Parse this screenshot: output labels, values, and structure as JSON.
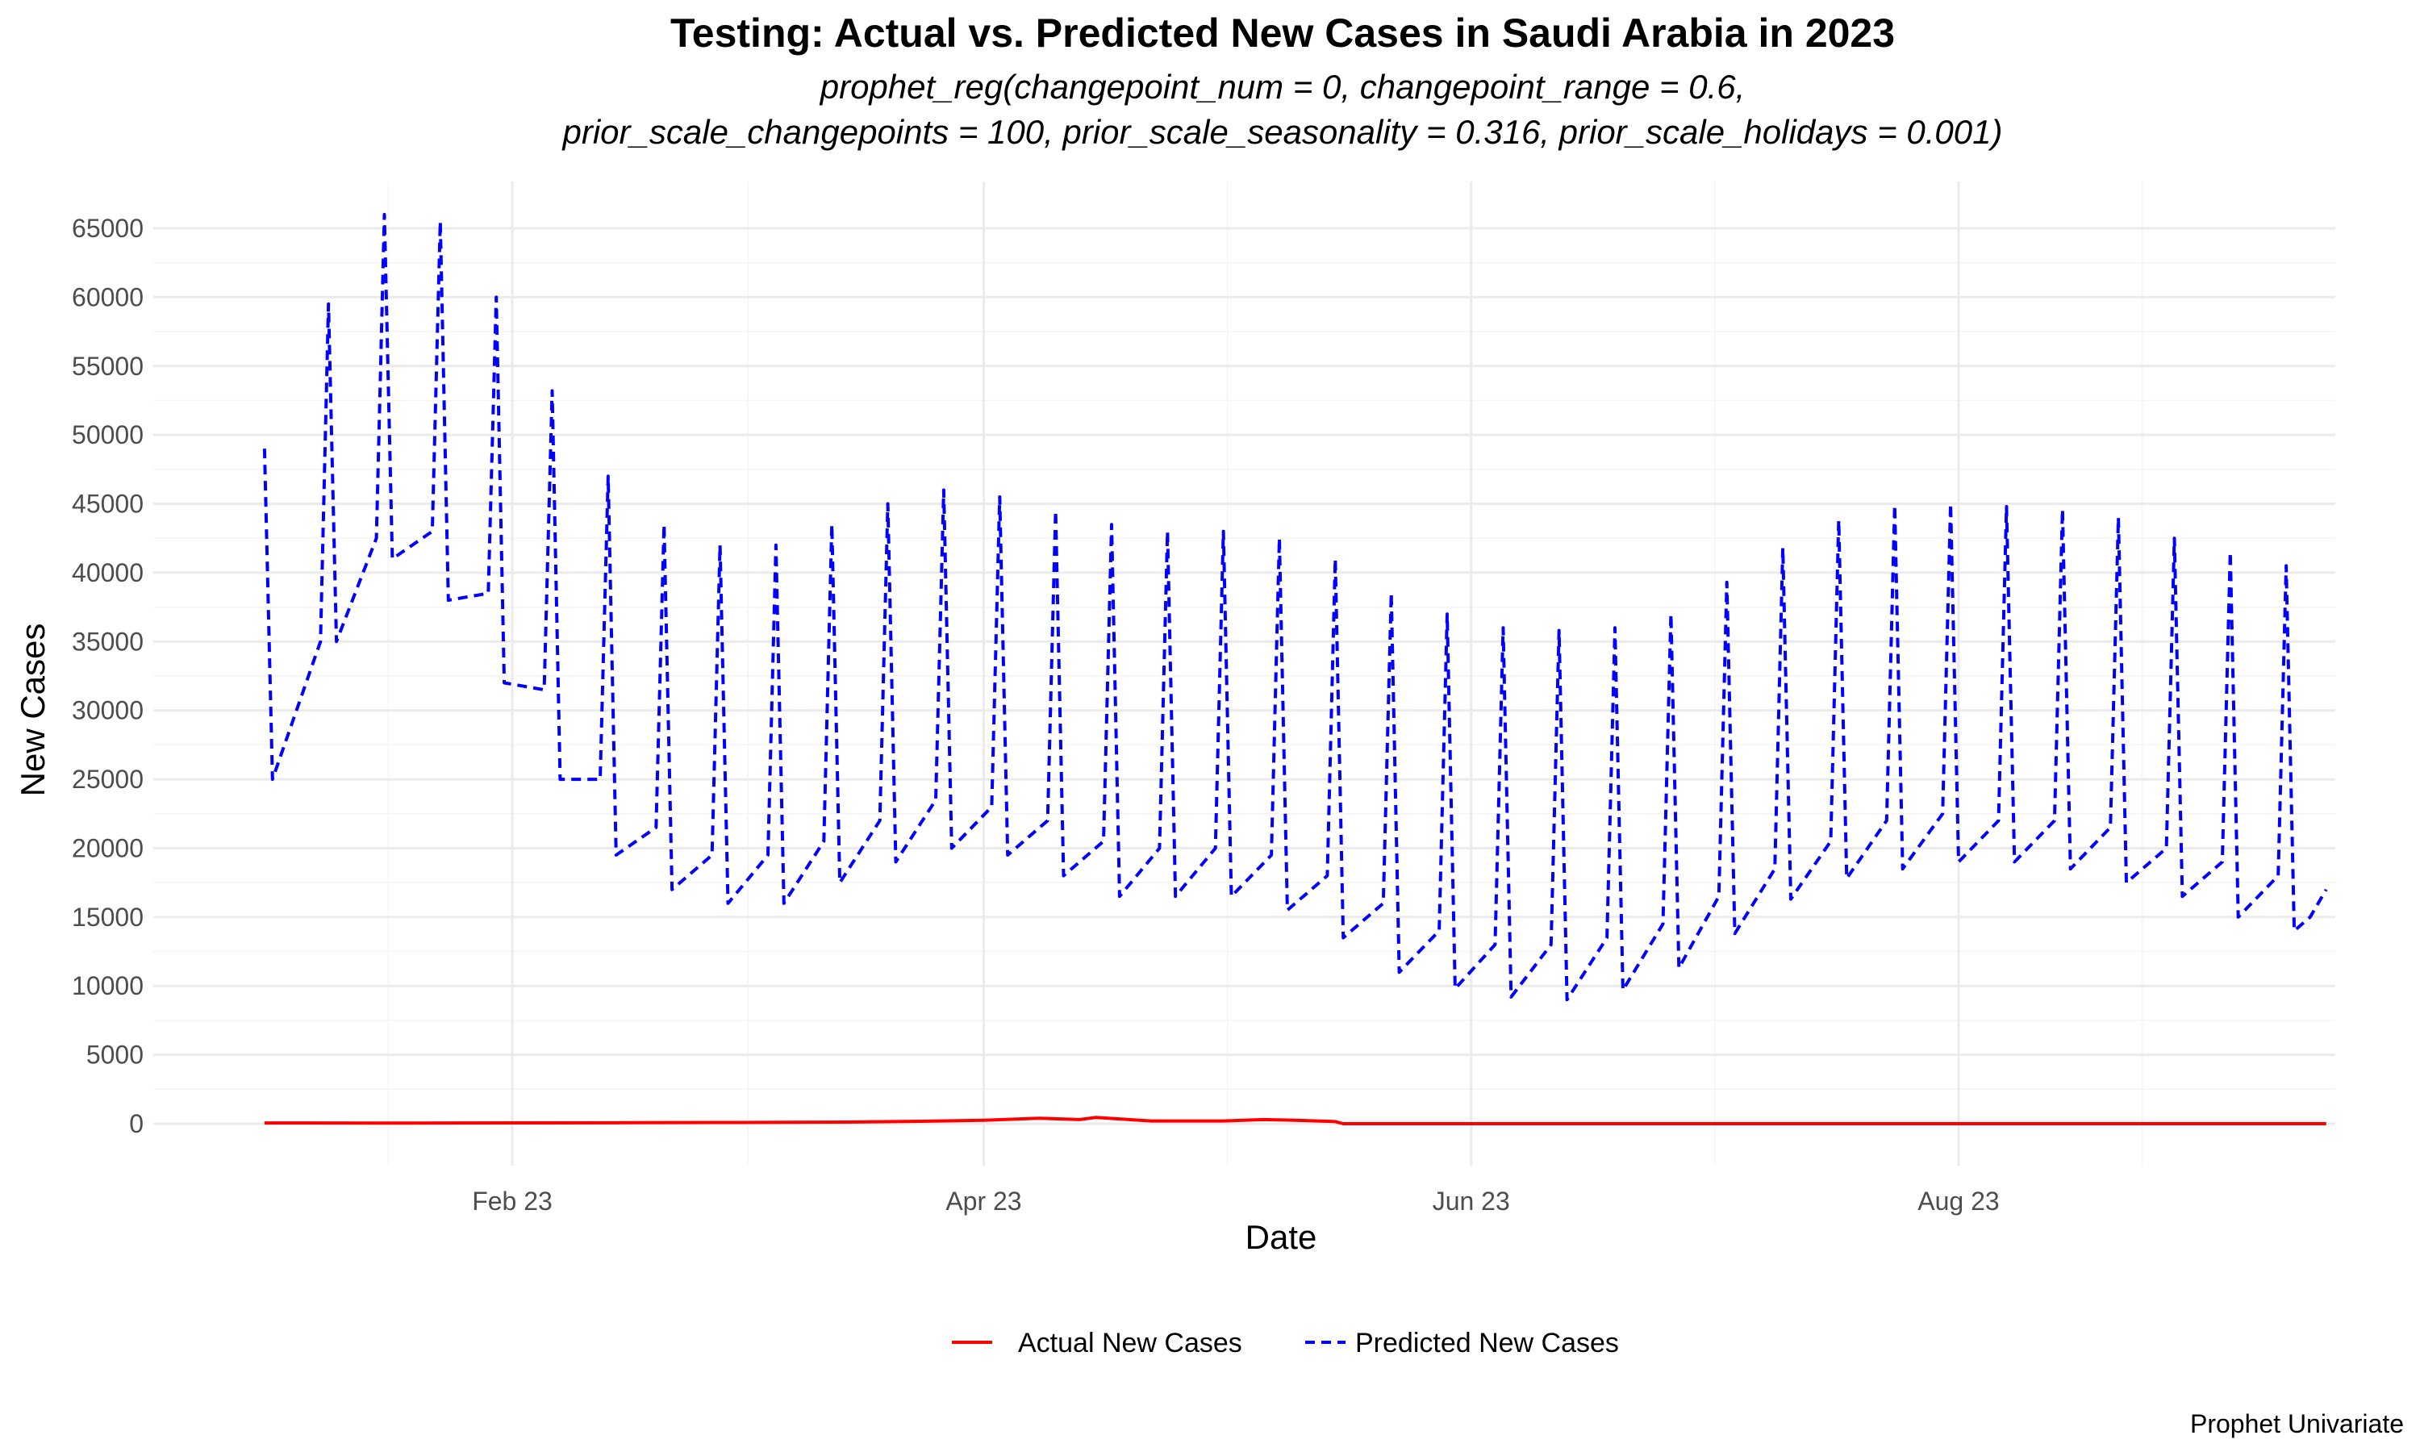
{
  "chart_data": {
    "type": "line",
    "title": "Testing: Actual vs. Predicted New Cases in Saudi Arabia in 2023",
    "subtitle_lines": [
      "prophet_reg(changepoint_num = 0, changepoint_range = 0.6,",
      "prior_scale_changepoints = 100, prior_scale_seasonality = 0.316, prior_scale_holidays = 0.001)"
    ],
    "xlabel": "Date",
    "ylabel": "New Cases",
    "caption": "Prophet Univariate",
    "x_axis_type": "date",
    "x_range": [
      "2023-01-01",
      "2023-09-16"
    ],
    "x_ticks": [
      {
        "date": "2023-02-01",
        "label": "Feb 23"
      },
      {
        "date": "2023-04-01",
        "label": "Apr 23"
      },
      {
        "date": "2023-06-01",
        "label": "Jun 23"
      },
      {
        "date": "2023-08-01",
        "label": "Aug 23"
      }
    ],
    "ylim": [
      -3000,
      66000
    ],
    "y_ticks": [
      0,
      5000,
      10000,
      15000,
      20000,
      25000,
      30000,
      35000,
      40000,
      45000,
      50000,
      55000,
      60000,
      65000
    ],
    "grid": true,
    "legend_position": "bottom",
    "series": [
      {
        "name": "Actual New Cases",
        "color": "#ff0000",
        "line_style": "solid",
        "points": [
          {
            "x": "2023-01-01",
            "y": 50
          },
          {
            "x": "2023-01-15",
            "y": 40
          },
          {
            "x": "2023-02-01",
            "y": 60
          },
          {
            "x": "2023-02-15",
            "y": 70
          },
          {
            "x": "2023-03-01",
            "y": 90
          },
          {
            "x": "2023-03-15",
            "y": 120
          },
          {
            "x": "2023-03-25",
            "y": 180
          },
          {
            "x": "2023-04-01",
            "y": 250
          },
          {
            "x": "2023-04-08",
            "y": 400
          },
          {
            "x": "2023-04-13",
            "y": 300
          },
          {
            "x": "2023-04-15",
            "y": 450
          },
          {
            "x": "2023-04-22",
            "y": 200
          },
          {
            "x": "2023-05-01",
            "y": 200
          },
          {
            "x": "2023-05-06",
            "y": 300
          },
          {
            "x": "2023-05-10",
            "y": 250
          },
          {
            "x": "2023-05-15",
            "y": 150
          },
          {
            "x": "2023-05-16",
            "y": 0
          },
          {
            "x": "2023-09-16",
            "y": 0
          }
        ]
      },
      {
        "name": "Predicted New Cases",
        "color": "#0000ff",
        "line_style": "dashed",
        "weekly_points": [
          {
            "x": "2023-01-01",
            "y": 49000
          },
          {
            "x": "2023-01-02",
            "y": 25000
          },
          {
            "x": "2023-01-08",
            "y": 35000
          },
          {
            "x": "2023-01-09",
            "y": 59500
          },
          {
            "x": "2023-01-10",
            "y": 35000
          },
          {
            "x": "2023-01-15",
            "y": 42500
          },
          {
            "x": "2023-01-16",
            "y": 66000
          },
          {
            "x": "2023-01-17",
            "y": 41000
          },
          {
            "x": "2023-01-22",
            "y": 43000
          },
          {
            "x": "2023-01-23",
            "y": 65500
          },
          {
            "x": "2023-01-24",
            "y": 38000
          },
          {
            "x": "2023-01-29",
            "y": 38500
          },
          {
            "x": "2023-01-30",
            "y": 60000
          },
          {
            "x": "2023-01-31",
            "y": 32000
          },
          {
            "x": "2023-02-05",
            "y": 31500
          },
          {
            "x": "2023-02-06",
            "y": 53200
          },
          {
            "x": "2023-02-07",
            "y": 25000
          },
          {
            "x": "2023-02-12",
            "y": 25000
          },
          {
            "x": "2023-02-13",
            "y": 47000
          },
          {
            "x": "2023-02-14",
            "y": 19500
          },
          {
            "x": "2023-02-19",
            "y": 21500
          },
          {
            "x": "2023-02-20",
            "y": 43500
          },
          {
            "x": "2023-02-21",
            "y": 17000
          },
          {
            "x": "2023-02-26",
            "y": 19500
          },
          {
            "x": "2023-02-27",
            "y": 42000
          },
          {
            "x": "2023-02-28",
            "y": 16000
          },
          {
            "x": "2023-03-05",
            "y": 19500
          },
          {
            "x": "2023-03-06",
            "y": 42000
          },
          {
            "x": "2023-03-07",
            "y": 16000
          },
          {
            "x": "2023-03-12",
            "y": 20500
          },
          {
            "x": "2023-03-13",
            "y": 43500
          },
          {
            "x": "2023-03-14",
            "y": 17500
          },
          {
            "x": "2023-03-19",
            "y": 22000
          },
          {
            "x": "2023-03-20",
            "y": 45000
          },
          {
            "x": "2023-03-21",
            "y": 19000
          },
          {
            "x": "2023-03-26",
            "y": 23500
          },
          {
            "x": "2023-03-27",
            "y": 46000
          },
          {
            "x": "2023-03-28",
            "y": 20000
          },
          {
            "x": "2023-04-02",
            "y": 23000
          },
          {
            "x": "2023-04-03",
            "y": 45500
          },
          {
            "x": "2023-04-04",
            "y": 19500
          },
          {
            "x": "2023-04-09",
            "y": 22000
          },
          {
            "x": "2023-04-10",
            "y": 44500
          },
          {
            "x": "2023-04-11",
            "y": 18000
          },
          {
            "x": "2023-04-16",
            "y": 20500
          },
          {
            "x": "2023-04-17",
            "y": 43500
          },
          {
            "x": "2023-04-18",
            "y": 16500
          },
          {
            "x": "2023-04-23",
            "y": 20000
          },
          {
            "x": "2023-04-24",
            "y": 43000
          },
          {
            "x": "2023-04-25",
            "y": 16500
          },
          {
            "x": "2023-04-30",
            "y": 20000
          },
          {
            "x": "2023-05-01",
            "y": 43000
          },
          {
            "x": "2023-05-02",
            "y": 16500
          },
          {
            "x": "2023-05-07",
            "y": 19500
          },
          {
            "x": "2023-05-08",
            "y": 42500
          },
          {
            "x": "2023-05-09",
            "y": 15500
          },
          {
            "x": "2023-05-14",
            "y": 18000
          },
          {
            "x": "2023-05-15",
            "y": 41000
          },
          {
            "x": "2023-05-16",
            "y": 13500
          },
          {
            "x": "2023-05-21",
            "y": 16000
          },
          {
            "x": "2023-05-22",
            "y": 38500
          },
          {
            "x": "2023-05-23",
            "y": 11000
          },
          {
            "x": "2023-05-28",
            "y": 14000
          },
          {
            "x": "2023-05-29",
            "y": 37000
          },
          {
            "x": "2023-05-30",
            "y": 9800
          },
          {
            "x": "2023-06-04",
            "y": 13000
          },
          {
            "x": "2023-06-05",
            "y": 36000
          },
          {
            "x": "2023-06-06",
            "y": 9200
          },
          {
            "x": "2023-06-11",
            "y": 13000
          },
          {
            "x": "2023-06-12",
            "y": 35800
          },
          {
            "x": "2023-06-13",
            "y": 9000
          },
          {
            "x": "2023-06-18",
            "y": 13500
          },
          {
            "x": "2023-06-19",
            "y": 36000
          },
          {
            "x": "2023-06-20",
            "y": 9700
          },
          {
            "x": "2023-06-25",
            "y": 14500
          },
          {
            "x": "2023-06-26",
            "y": 37000
          },
          {
            "x": "2023-06-27",
            "y": 11300
          },
          {
            "x": "2023-07-02",
            "y": 16500
          },
          {
            "x": "2023-07-03",
            "y": 39300
          },
          {
            "x": "2023-07-04",
            "y": 13800
          },
          {
            "x": "2023-07-09",
            "y": 18500
          },
          {
            "x": "2023-07-10",
            "y": 41800
          },
          {
            "x": "2023-07-11",
            "y": 16300
          },
          {
            "x": "2023-07-16",
            "y": 20500
          },
          {
            "x": "2023-07-17",
            "y": 43800
          },
          {
            "x": "2023-07-18",
            "y": 17800
          },
          {
            "x": "2023-07-23",
            "y": 22000
          },
          {
            "x": "2023-07-24",
            "y": 44900
          },
          {
            "x": "2023-07-25",
            "y": 18500
          },
          {
            "x": "2023-07-30",
            "y": 22500
          },
          {
            "x": "2023-07-31",
            "y": 45000
          },
          {
            "x": "2023-08-01",
            "y": 19000
          },
          {
            "x": "2023-08-06",
            "y": 22000
          },
          {
            "x": "2023-08-07",
            "y": 44800
          },
          {
            "x": "2023-08-08",
            "y": 19000
          },
          {
            "x": "2023-08-13",
            "y": 22000
          },
          {
            "x": "2023-08-14",
            "y": 44600
          },
          {
            "x": "2023-08-15",
            "y": 18500
          },
          {
            "x": "2023-08-20",
            "y": 21500
          },
          {
            "x": "2023-08-21",
            "y": 44000
          },
          {
            "x": "2023-08-22",
            "y": 17500
          },
          {
            "x": "2023-08-27",
            "y": 20000
          },
          {
            "x": "2023-08-28",
            "y": 42500
          },
          {
            "x": "2023-08-29",
            "y": 16500
          },
          {
            "x": "2023-09-03",
            "y": 19000
          },
          {
            "x": "2023-09-04",
            "y": 41500
          },
          {
            "x": "2023-09-05",
            "y": 15000
          },
          {
            "x": "2023-09-10",
            "y": 18000
          },
          {
            "x": "2023-09-11",
            "y": 40500
          },
          {
            "x": "2023-09-12",
            "y": 14000
          },
          {
            "x": "2023-09-14",
            "y": 15000
          },
          {
            "x": "2023-09-16",
            "y": 17000
          }
        ]
      }
    ]
  }
}
